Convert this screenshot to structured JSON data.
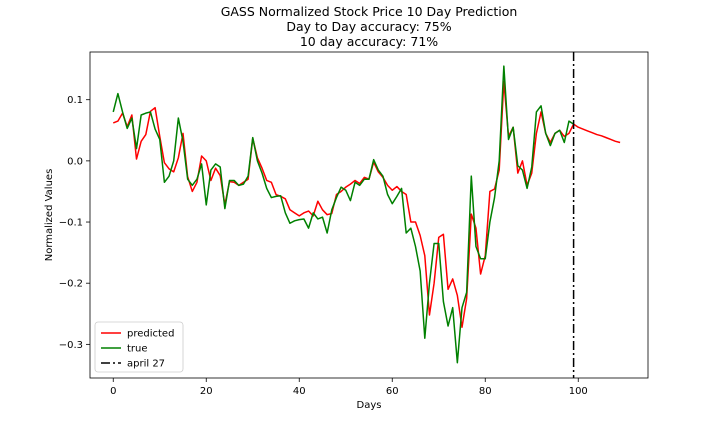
{
  "chart_data": {
    "type": "line",
    "title": [
      "GASS Normalized Stock Price 10 Day Prediction",
      "Day to Day accuracy: 75%",
      "10 day accuracy: 71%"
    ],
    "xlabel": "Days",
    "ylabel": "Normalized Values",
    "xlim": [
      -5,
      115
    ],
    "ylim": [
      -0.355,
      0.178
    ],
    "xticks": [
      0,
      20,
      40,
      60,
      80,
      100
    ],
    "yticks": [
      0.1,
      0.0,
      -0.1,
      -0.2,
      -0.3
    ],
    "ytick_labels": [
      "0.1",
      "0.0",
      "−0.1",
      "−0.2",
      "−0.3"
    ],
    "legend_position": "lower-left",
    "series": [
      {
        "name": "predicted",
        "color": "#ff0000",
        "style": "solid",
        "x": [
          0,
          1,
          2,
          3,
          4,
          5,
          6,
          7,
          8,
          9,
          10,
          11,
          12,
          13,
          14,
          15,
          16,
          17,
          18,
          19,
          20,
          21,
          22,
          23,
          24,
          25,
          26,
          27,
          28,
          29,
          30,
          31,
          32,
          33,
          34,
          35,
          36,
          37,
          38,
          39,
          40,
          41,
          42,
          43,
          44,
          45,
          46,
          47,
          48,
          49,
          50,
          51,
          52,
          53,
          54,
          55,
          56,
          57,
          58,
          59,
          60,
          61,
          62,
          63,
          64,
          65,
          66,
          67,
          68,
          69,
          70,
          71,
          72,
          73,
          74,
          75,
          76,
          77,
          78,
          79,
          80,
          81,
          82,
          83,
          84,
          85,
          86,
          87,
          88,
          89,
          90,
          91,
          92,
          93,
          94,
          95,
          96,
          97,
          98,
          99,
          100,
          101,
          102,
          103,
          104,
          105,
          106,
          107,
          108,
          109
        ],
        "y": [
          0.062,
          0.065,
          0.078,
          0.056,
          0.075,
          0.003,
          0.032,
          0.043,
          0.081,
          0.087,
          0.04,
          -0.003,
          -0.013,
          -0.018,
          0.005,
          0.045,
          -0.026,
          -0.05,
          -0.035,
          0.008,
          0.0,
          -0.032,
          -0.012,
          -0.024,
          -0.072,
          -0.034,
          -0.035,
          -0.04,
          -0.035,
          -0.03,
          0.037,
          0.005,
          -0.012,
          -0.032,
          -0.035,
          -0.055,
          -0.058,
          -0.062,
          -0.08,
          -0.085,
          -0.09,
          -0.085,
          -0.082,
          -0.09,
          -0.066,
          -0.08,
          -0.088,
          -0.086,
          -0.055,
          -0.05,
          -0.043,
          -0.038,
          -0.032,
          -0.037,
          -0.027,
          -0.03,
          -0.002,
          -0.018,
          -0.027,
          -0.04,
          -0.048,
          -0.042,
          -0.05,
          -0.055,
          -0.1,
          -0.1,
          -0.122,
          -0.155,
          -0.252,
          -0.2,
          -0.125,
          -0.12,
          -0.21,
          -0.193,
          -0.22,
          -0.272,
          -0.225,
          -0.087,
          -0.11,
          -0.185,
          -0.155,
          -0.05,
          -0.046,
          -0.015,
          0.13,
          0.04,
          0.055,
          -0.02,
          0.0,
          -0.04,
          -0.02,
          0.045,
          0.08,
          0.045,
          0.03,
          0.045,
          0.05,
          0.04,
          0.045,
          0.06,
          0.055,
          0.052,
          0.049,
          0.046,
          0.043,
          0.041,
          0.038,
          0.035,
          0.032,
          0.03
        ]
      },
      {
        "name": "true",
        "color": "#008000",
        "style": "solid",
        "x": [
          0,
          1,
          2,
          3,
          4,
          5,
          6,
          7,
          8,
          9,
          10,
          11,
          12,
          13,
          14,
          15,
          16,
          17,
          18,
          19,
          20,
          21,
          22,
          23,
          24,
          25,
          26,
          27,
          28,
          29,
          30,
          31,
          32,
          33,
          34,
          35,
          36,
          37,
          38,
          39,
          40,
          41,
          42,
          43,
          44,
          45,
          46,
          47,
          48,
          49,
          50,
          51,
          52,
          53,
          54,
          55,
          56,
          57,
          58,
          59,
          60,
          61,
          62,
          63,
          64,
          65,
          66,
          67,
          68,
          69,
          70,
          71,
          72,
          73,
          74,
          75,
          76,
          77,
          78,
          79,
          80,
          81,
          82,
          83,
          84,
          85,
          86,
          87,
          88,
          89,
          90,
          91,
          92,
          93,
          94,
          95,
          96,
          97,
          98,
          99
        ],
        "y": [
          0.08,
          0.11,
          0.08,
          0.053,
          0.07,
          0.02,
          0.075,
          0.078,
          0.08,
          0.052,
          0.035,
          -0.035,
          -0.025,
          0.0,
          0.07,
          0.032,
          -0.03,
          -0.04,
          -0.03,
          -0.005,
          -0.072,
          -0.015,
          -0.005,
          -0.01,
          -0.078,
          -0.032,
          -0.032,
          -0.04,
          -0.038,
          -0.025,
          0.038,
          0.0,
          -0.02,
          -0.045,
          -0.06,
          -0.058,
          -0.057,
          -0.085,
          -0.102,
          -0.098,
          -0.096,
          -0.095,
          -0.11,
          -0.085,
          -0.095,
          -0.092,
          -0.118,
          -0.08,
          -0.06,
          -0.043,
          -0.048,
          -0.065,
          -0.035,
          -0.04,
          -0.03,
          -0.03,
          0.002,
          -0.015,
          -0.025,
          -0.055,
          -0.07,
          -0.058,
          -0.045,
          -0.118,
          -0.11,
          -0.14,
          -0.18,
          -0.29,
          -0.2,
          -0.135,
          -0.135,
          -0.23,
          -0.27,
          -0.24,
          -0.33,
          -0.24,
          -0.215,
          -0.025,
          -0.14,
          -0.16,
          -0.16,
          -0.1,
          -0.06,
          0.0,
          0.155,
          0.035,
          0.055,
          -0.008,
          -0.015,
          -0.045,
          -0.01,
          0.08,
          0.09,
          0.045,
          0.025,
          0.045,
          0.05,
          0.03,
          0.065,
          0.06
        ]
      }
    ],
    "vline": {
      "name": "april 27",
      "x": 99,
      "color": "#000000",
      "style": "dashdot"
    }
  }
}
